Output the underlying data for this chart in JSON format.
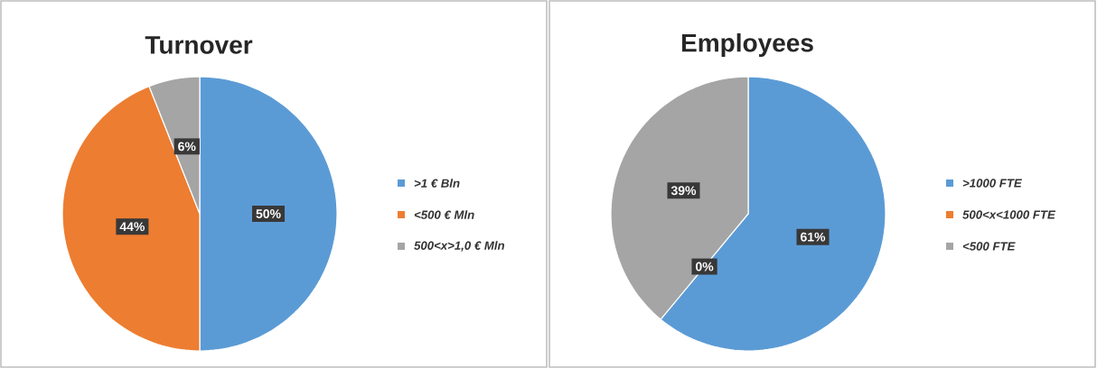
{
  "chart_data": [
    {
      "type": "pie",
      "title": "Turnover",
      "categories": [
        ">1 € Bln",
        "<500 € Mln",
        "500<x>1,0 € Mln"
      ],
      "values": [
        50,
        44,
        6
      ],
      "value_labels": [
        "50%",
        "44%",
        "6%"
      ],
      "colors": [
        "#5b9bd5",
        "#ed7d31",
        "#a5a5a5"
      ],
      "legend": "right"
    },
    {
      "type": "pie",
      "title": "Employees",
      "categories": [
        ">1000 FTE",
        "500<x<1000 FTE",
        "<500 FTE"
      ],
      "values": [
        61,
        0,
        39
      ],
      "value_labels": [
        "61%",
        "0%",
        "39%"
      ],
      "colors": [
        "#5b9bd5",
        "#ed7d31",
        "#a5a5a5"
      ],
      "legend": "right"
    }
  ]
}
